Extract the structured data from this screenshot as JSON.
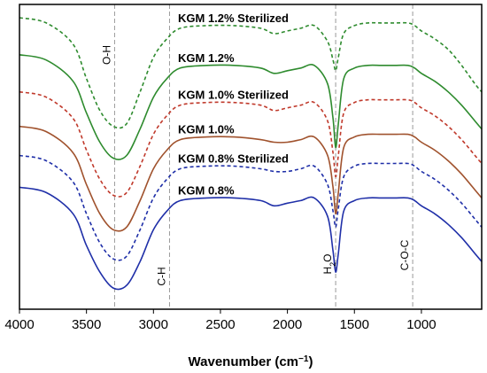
{
  "chart_data": {
    "type": "line",
    "title": "",
    "xlabel": "Wavenumber (cm",
    "xlabel_sup": "−1",
    "xlabel_end": ")",
    "ylabel": "",
    "xlim": [
      4000,
      550
    ],
    "x_reversed": true,
    "ticks": [
      "4000",
      "3500",
      "3000",
      "2500",
      "2000",
      "1500",
      "1000"
    ],
    "tick_values": [
      4000,
      3500,
      3000,
      2500,
      2000,
      1500,
      1000
    ],
    "grid": false,
    "legend": "inline",
    "reference_lines": [
      {
        "x": 3290,
        "label": "O-H"
      },
      {
        "x": 2880,
        "label": "C-H"
      },
      {
        "x": 1640,
        "label_main": "H",
        "label_sub": "2",
        "label_end": "O"
      },
      {
        "x": 1065,
        "label": "C-O-C"
      }
    ],
    "x": [
      4000,
      3800,
      3600,
      3500,
      3400,
      3300,
      3200,
      3100,
      3000,
      2900,
      2800,
      2600,
      2400,
      2200,
      2100,
      2000,
      1900,
      1800,
      1700,
      1660,
      1640,
      1620,
      1580,
      1500,
      1400,
      1300,
      1200,
      1100,
      1050,
      1000,
      900,
      800,
      700,
      600,
      550
    ],
    "series": [
      {
        "name": "KGM 1.2% Sterilized",
        "color": "#2e8b2e",
        "dash": true,
        "values": [
          98,
          96,
          88,
          75,
          63,
          57,
          58,
          70,
          83,
          90,
          94,
          95,
          95,
          94,
          92,
          93,
          94,
          95,
          89,
          82,
          78,
          83,
          92,
          95,
          96,
          96,
          96,
          96,
          95,
          93,
          90,
          86,
          80,
          73,
          70
        ]
      },
      {
        "name": "KGM 1.2%",
        "color": "#2e8b2e",
        "dash": false,
        "values": [
          84,
          82,
          74,
          62,
          51,
          45,
          46,
          56,
          68,
          75,
          79,
          80,
          80,
          79,
          77,
          78,
          79,
          80,
          73,
          60,
          49,
          58,
          75,
          79,
          80,
          80,
          80,
          80,
          79,
          77,
          74,
          70,
          65,
          59,
          56
        ]
      },
      {
        "name": "KGM 1.0% Sterilized",
        "color": "#c0392b",
        "dash": true,
        "values": [
          70,
          68,
          60,
          48,
          37,
          31,
          32,
          42,
          54,
          61,
          65,
          66,
          66,
          65,
          63,
          64,
          65,
          66,
          59,
          47,
          38,
          46,
          62,
          66,
          67,
          67,
          67,
          67,
          66,
          64,
          61,
          57,
          52,
          46,
          43
        ]
      },
      {
        "name": "KGM 1.0%",
        "color": "#a0522d",
        "dash": false,
        "values": [
          57,
          55,
          47,
          35,
          24,
          18,
          19,
          29,
          41,
          48,
          52,
          53,
          53,
          52,
          51,
          51,
          52,
          53,
          46,
          34,
          24,
          32,
          49,
          53,
          54,
          54,
          54,
          54,
          53,
          51,
          48,
          44,
          39,
          33,
          30
        ]
      },
      {
        "name": "KGM 0.8% Sterilized",
        "color": "#1f2fa8",
        "dash": true,
        "values": [
          46,
          44,
          36,
          24,
          13,
          7,
          8,
          18,
          30,
          37,
          41,
          42,
          42,
          41,
          40,
          40,
          41,
          42,
          35,
          25,
          19,
          26,
          38,
          42,
          43,
          43,
          43,
          43,
          42,
          40,
          37,
          33,
          28,
          22,
          19
        ]
      },
      {
        "name": "KGM 0.8%",
        "color": "#1f2fa8",
        "dash": false,
        "values": [
          34,
          32,
          24,
          12,
          2,
          -4,
          -3,
          6,
          18,
          25,
          29,
          30,
          30,
          29,
          27,
          28,
          29,
          30,
          23,
          10,
          2,
          9,
          25,
          29,
          30,
          30,
          30,
          30,
          29,
          27,
          24,
          20,
          15,
          9,
          6
        ]
      }
    ]
  }
}
